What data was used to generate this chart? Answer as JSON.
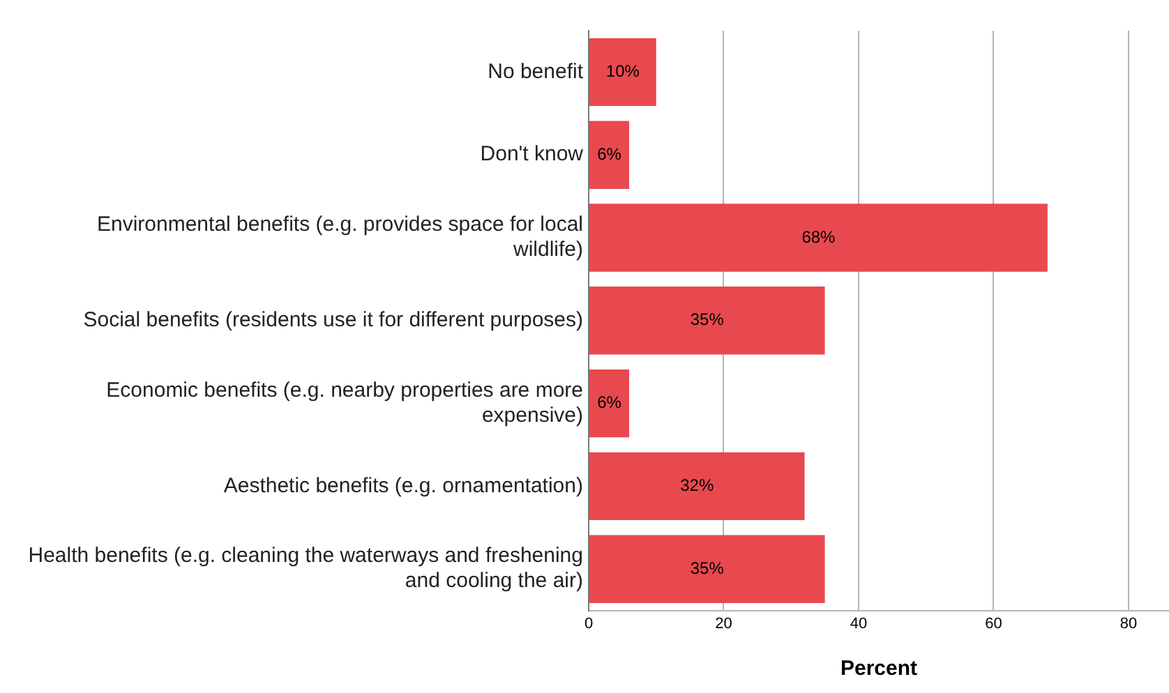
{
  "chart_data": {
    "type": "bar",
    "orientation": "horizontal",
    "xlabel": "Percent",
    "categories": [
      "No benefit",
      "Don't know",
      "Environmental benefits (e.g. provides space for local wildlife)",
      "Social benefits (residents use it for different purposes)",
      "Economic benefits (e.g. nearby properties are more expensive)",
      "Aesthetic benefits (e.g. ornamentation)",
      "Health benefits (e.g. cleaning the waterways and freshening and cooling the air)"
    ],
    "values": [
      10,
      6,
      68,
      35,
      6,
      32,
      35
    ],
    "value_labels": [
      "10%",
      "6%",
      "68%",
      "35%",
      "6%",
      "32%",
      "35%"
    ],
    "color": "#e8494e",
    "xlim": [
      0,
      86
    ],
    "xticks": [
      0,
      20,
      40,
      60,
      80
    ],
    "grid": "x",
    "legend": false
  }
}
